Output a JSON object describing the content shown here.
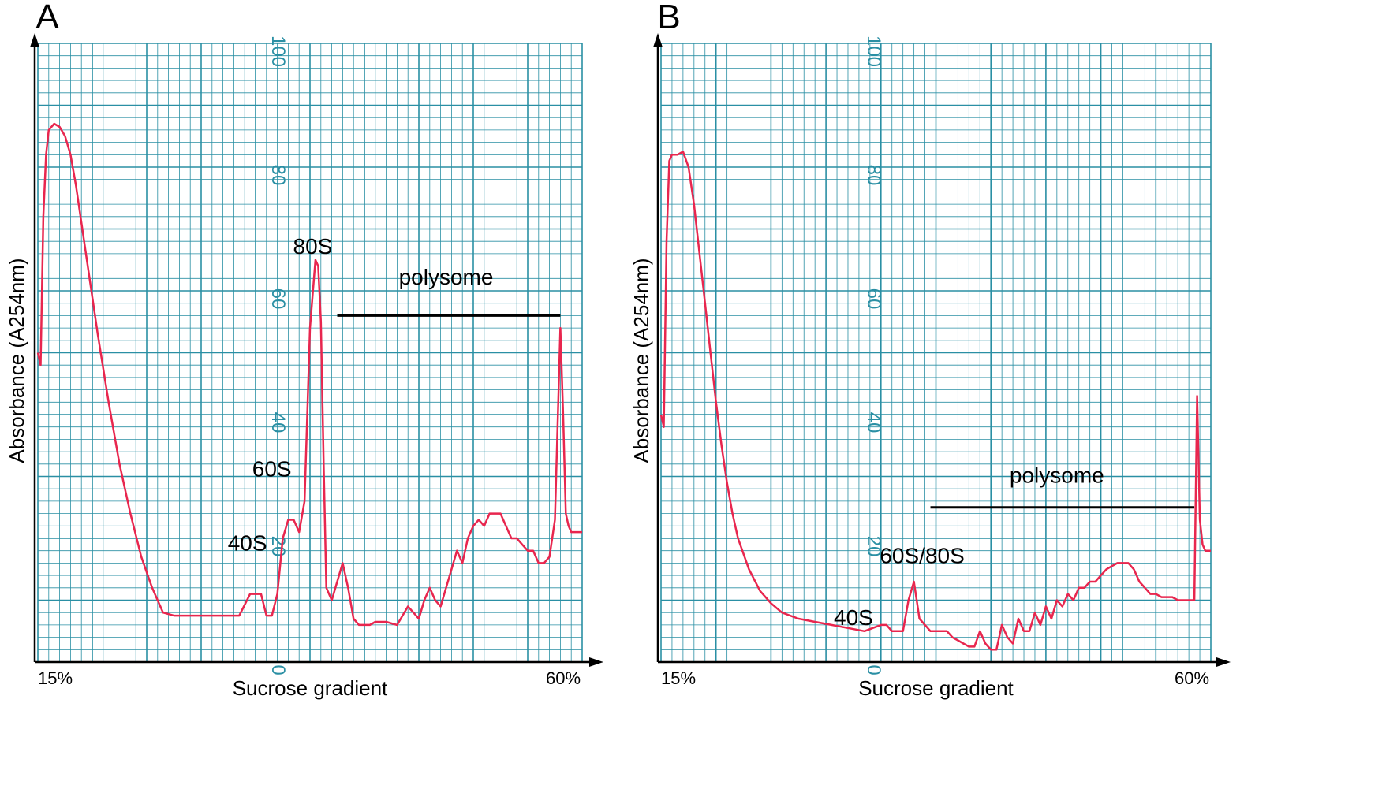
{
  "colors": {
    "grid": "#2a8fa4",
    "trace": "#e8264e",
    "paper": "#ffffff",
    "axis": "#000000",
    "paper_numbers": "#2a8fa4"
  },
  "chart_data": [
    {
      "type": "line",
      "panel_label": "A",
      "xlabel": "Sucrose gradient",
      "ylabel": "Absorbance (A254nm)",
      "x_tick_labels": [
        "15%",
        "60%"
      ],
      "xlim": [
        0,
        100
      ],
      "ylim": [
        0,
        100
      ],
      "paper_scale_labels": [
        "100",
        "80",
        "60",
        "40",
        "20",
        "0"
      ],
      "series": [
        {
          "values_x": [
            0,
            0.5,
            1,
            1.5,
            2,
            3,
            4,
            5,
            6,
            7,
            8,
            9,
            10,
            11,
            13,
            15,
            17,
            19,
            21,
            23,
            25,
            27,
            29,
            31,
            33,
            35,
            37,
            39,
            41,
            42,
            43,
            44,
            45,
            46,
            47,
            48,
            49,
            50,
            51,
            51.5,
            52,
            52.5,
            53,
            54,
            55,
            56,
            57,
            58,
            59,
            60,
            61,
            62,
            63,
            64,
            66,
            68,
            69,
            70,
            71,
            72,
            73,
            74,
            75,
            76,
            77,
            78,
            79,
            80,
            81,
            82,
            83,
            84,
            85,
            86,
            87,
            88,
            89,
            90,
            91,
            92,
            93,
            94,
            95,
            96,
            96.5,
            97,
            97.5,
            98,
            99,
            100
          ],
          "values_y": [
            50,
            48,
            72,
            82,
            86,
            87,
            86.5,
            85,
            82,
            77,
            71,
            65,
            59,
            53,
            42,
            32,
            24,
            17,
            12,
            8,
            7.5,
            7.5,
            7.5,
            7.5,
            7.5,
            7.5,
            7.5,
            11,
            11,
            7.5,
            7.5,
            11,
            20,
            23,
            23,
            21,
            26,
            54,
            65,
            64,
            55,
            32,
            12,
            10,
            13,
            16,
            12,
            7,
            6,
            6,
            6,
            6.5,
            6.5,
            6.5,
            6,
            9,
            8,
            7,
            10,
            12,
            10,
            9,
            12,
            15,
            18,
            16,
            20,
            22,
            23,
            22,
            24,
            24,
            24,
            22,
            20,
            20,
            19,
            18,
            18,
            16,
            16,
            17,
            23,
            54,
            40,
            24,
            22,
            21,
            21,
            21
          ],
          "name": ""
        }
      ],
      "annotations": [
        {
          "text": "80S",
          "x": 50.5,
          "y": 66
        },
        {
          "text": "60S",
          "x": 43,
          "y": 30
        },
        {
          "text": "40S",
          "x": 38.5,
          "y": 18
        },
        {
          "text": "polysome",
          "x": 75,
          "y": 61,
          "bar_x": [
            55,
            96
          ],
          "bar_y": 56
        }
      ]
    },
    {
      "type": "line",
      "panel_label": "B",
      "xlabel": "Sucrose gradient",
      "ylabel": "Absorbance (A254nm)",
      "x_tick_labels": [
        "15%",
        "60%"
      ],
      "xlim": [
        0,
        100
      ],
      "ylim": [
        0,
        100
      ],
      "paper_scale_labels": [
        "100",
        "80",
        "60",
        "40",
        "20",
        "0"
      ],
      "series": [
        {
          "values_x": [
            0,
            0.5,
            1,
            1.5,
            2,
            3,
            4,
            5,
            6,
            7,
            8,
            9,
            10,
            11,
            12,
            13,
            14,
            16,
            18,
            20,
            22,
            25,
            28,
            31,
            34,
            37,
            40,
            41,
            42,
            43,
            44,
            45,
            46,
            47,
            48,
            49,
            50,
            51,
            52,
            53,
            54,
            55,
            56,
            57,
            58,
            59,
            60,
            61,
            62,
            63,
            64,
            65,
            66,
            67,
            68,
            69,
            70,
            71,
            72,
            73,
            74,
            75,
            76,
            77,
            78,
            79,
            80,
            81,
            82,
            83,
            84,
            85,
            86,
            87,
            88,
            89,
            90,
            91,
            92,
            93,
            94,
            95,
            96,
            97,
            97.5,
            98,
            98.5,
            99,
            100
          ],
          "values_y": [
            40,
            38,
            68,
            81,
            82,
            82,
            82.5,
            80,
            74,
            66,
            58,
            50,
            42,
            35,
            29,
            24,
            20,
            15,
            11.5,
            9.5,
            8,
            7,
            6.5,
            6,
            5.5,
            5,
            6,
            6,
            5,
            5,
            5,
            10,
            13,
            7,
            6,
            5,
            5,
            5,
            5,
            4,
            3.5,
            3,
            2.5,
            2.5,
            5,
            3,
            2,
            2,
            6,
            4,
            3,
            7,
            5,
            5,
            8,
            6,
            9,
            7,
            10,
            9,
            11,
            10,
            12,
            12,
            13,
            13,
            14,
            15,
            15.5,
            16,
            16,
            16,
            15,
            13,
            12,
            11,
            11,
            10.5,
            10.5,
            10.5,
            10,
            10,
            10,
            10,
            43,
            23,
            19,
            18,
            18
          ],
          "name": ""
        }
      ],
      "annotations": [
        {
          "text": "60S/80S",
          "x": 47.5,
          "y": 16
        },
        {
          "text": "40S",
          "x": 35,
          "y": 6
        },
        {
          "text": "polysome",
          "x": 72,
          "y": 29,
          "bar_x": [
            49,
            97
          ],
          "bar_y": 25
        }
      ]
    }
  ]
}
